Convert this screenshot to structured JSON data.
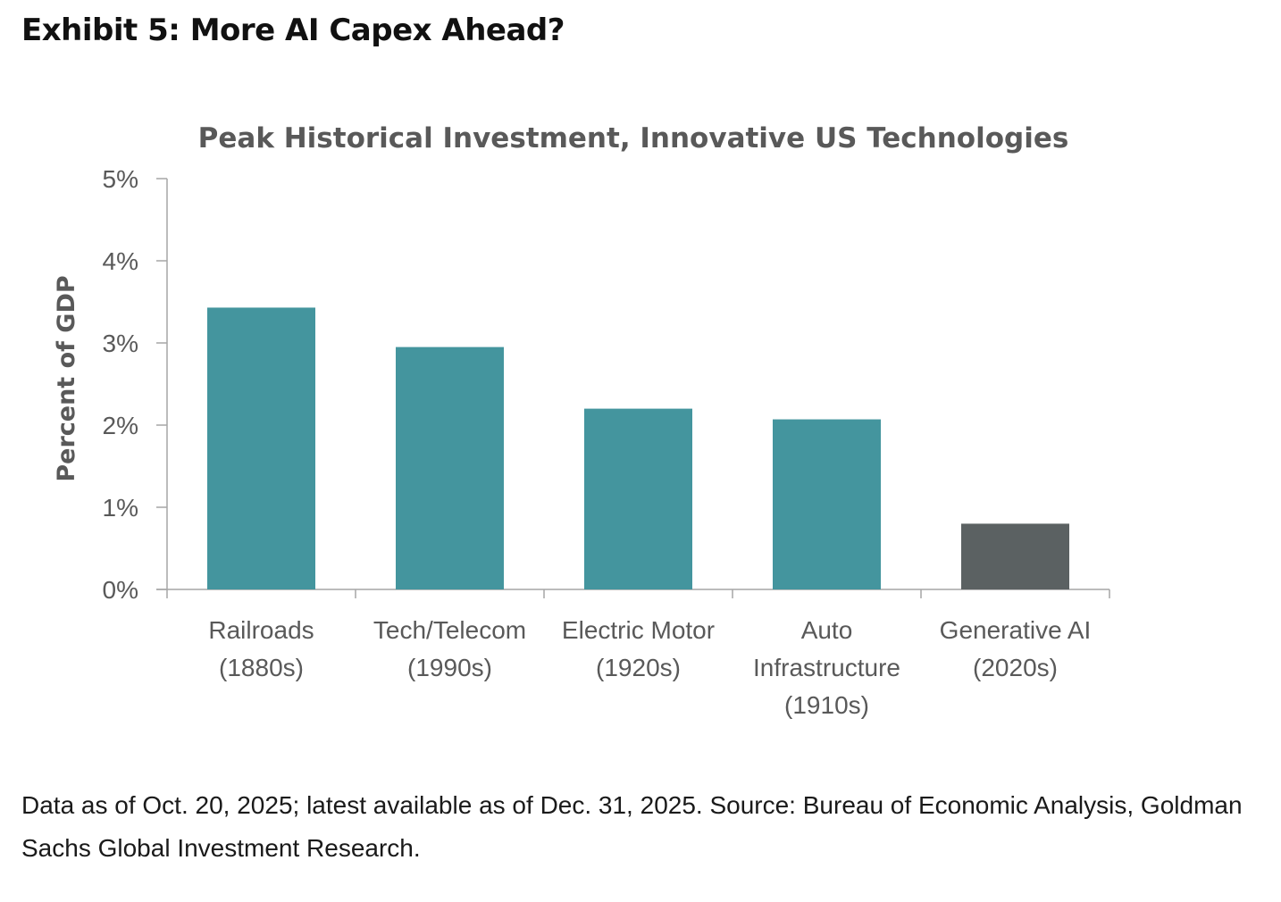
{
  "header": {
    "exhibit_title": "Exhibit 5: More AI Capex Ahead?"
  },
  "chart_data": {
    "type": "bar",
    "title": "Peak Historical Investment, Innovative US Technologies",
    "xlabel": "",
    "ylabel": "Percent of GDP",
    "ylim": [
      0,
      5
    ],
    "yticks": [
      0,
      1,
      2,
      3,
      4,
      5
    ],
    "ytick_labels": [
      "0%",
      "1%",
      "2%",
      "3%",
      "4%",
      "5%"
    ],
    "categories": [
      [
        "Railroads",
        "(1880s)"
      ],
      [
        "Tech/Telecom",
        "(1990s)"
      ],
      [
        "Electric Motor",
        "(1920s)"
      ],
      [
        "Auto",
        "Infrastructure",
        "(1910s)"
      ],
      [
        "Generative AI",
        "(2020s)"
      ]
    ],
    "values": [
      3.43,
      2.95,
      2.2,
      2.07,
      0.8
    ],
    "bar_colors": [
      "#44959e",
      "#44959e",
      "#44959e",
      "#44959e",
      "#5b6162"
    ],
    "grid": false,
    "legend": "none"
  },
  "footer": {
    "source_note": "Data as of Oct. 20, 2025; latest available as of Dec. 31, 2025. Source: Bureau of Economic Analysis, Goldman Sachs Global Investment Research."
  }
}
